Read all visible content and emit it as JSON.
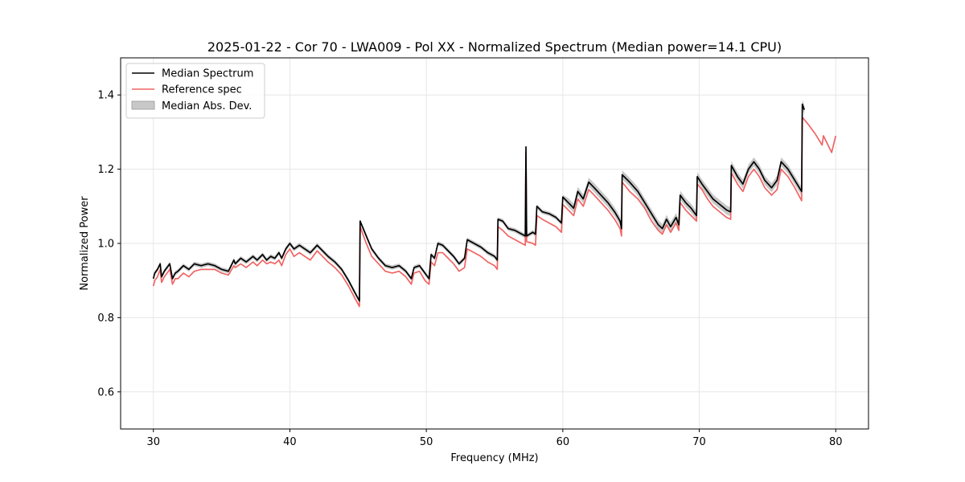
{
  "chart_data": {
    "type": "line",
    "title": "2025-01-22 - Cor 70 - LWA009 - Pol XX - Normalized Spectrum (Median power=14.1 CPU)",
    "xlabel": "Frequency (MHz)",
    "ylabel": "Normalized Power",
    "xlim": [
      27.6,
      82.4
    ],
    "ylim": [
      0.5,
      1.5
    ],
    "xticks": [
      30,
      40,
      50,
      60,
      70,
      80
    ],
    "yticks": [
      0.6,
      0.8,
      1.0,
      1.2,
      1.4
    ],
    "grid": true,
    "legend_position": "top-left",
    "colors": {
      "median": "#000000",
      "reference": "#f06464",
      "mad_fill": "#b4b4b4",
      "overlap": "#8b0000",
      "grid": "#e6e6e6"
    },
    "series": [
      {
        "name": "Median Spectrum",
        "x": [
          30.0,
          30.1,
          30.3,
          30.5,
          30.6,
          30.8,
          31.0,
          31.2,
          31.4,
          31.6,
          31.8,
          32.2,
          32.6,
          33.0,
          33.5,
          34.0,
          34.5,
          35.0,
          35.5,
          35.9,
          36.0,
          36.4,
          36.8,
          37.3,
          37.6,
          38.0,
          38.3,
          38.6,
          38.9,
          39.2,
          39.4,
          39.7,
          40.0,
          40.3,
          40.7,
          41.1,
          41.5,
          42.0,
          42.4,
          42.8,
          43.3,
          43.8,
          44.3,
          44.8,
          45.1,
          45.15,
          45.6,
          46.0,
          46.5,
          47.0,
          47.5,
          48.0,
          48.5,
          48.9,
          49.1,
          49.5,
          49.9,
          50.2,
          50.35,
          50.6,
          50.85,
          51.2,
          51.6,
          52.0,
          52.4,
          52.8,
          53.0,
          53.5,
          54.0,
          54.5,
          55.0,
          55.2,
          55.25,
          55.6,
          56.0,
          56.5,
          57.0,
          57.25,
          57.3,
          57.35,
          57.8,
          58.0,
          58.1,
          58.5,
          59.0,
          59.5,
          59.9,
          60.0,
          60.4,
          60.8,
          61.1,
          61.5,
          61.9,
          62.3,
          62.8,
          63.3,
          63.8,
          64.2,
          64.3,
          64.35,
          64.9,
          65.5,
          66.0,
          66.5,
          67.0,
          67.3,
          67.6,
          67.9,
          68.3,
          68.5,
          68.6,
          69.0,
          69.4,
          69.8,
          69.85,
          70.2,
          70.6,
          71.0,
          71.5,
          72.0,
          72.3,
          72.35,
          72.8,
          73.2,
          73.6,
          74.0,
          74.4,
          74.8,
          75.3,
          75.7,
          76.0,
          76.5,
          77.0,
          77.5,
          77.55,
          77.7
        ],
        "values": [
          0.905,
          0.92,
          0.93,
          0.945,
          0.91,
          0.925,
          0.935,
          0.945,
          0.905,
          0.92,
          0.925,
          0.94,
          0.93,
          0.945,
          0.94,
          0.945,
          0.94,
          0.93,
          0.925,
          0.955,
          0.945,
          0.96,
          0.95,
          0.965,
          0.955,
          0.97,
          0.955,
          0.965,
          0.96,
          0.975,
          0.96,
          0.985,
          1.0,
          0.985,
          0.995,
          0.985,
          0.975,
          0.995,
          0.98,
          0.965,
          0.95,
          0.93,
          0.9,
          0.865,
          0.845,
          1.06,
          1.02,
          0.985,
          0.96,
          0.94,
          0.935,
          0.94,
          0.925,
          0.905,
          0.935,
          0.94,
          0.92,
          0.905,
          0.97,
          0.96,
          1.0,
          0.995,
          0.98,
          0.965,
          0.945,
          0.96,
          1.01,
          1.0,
          0.99,
          0.975,
          0.965,
          0.955,
          1.065,
          1.06,
          1.04,
          1.035,
          1.025,
          1.02,
          1.26,
          1.02,
          1.03,
          1.025,
          1.1,
          1.085,
          1.08,
          1.07,
          1.055,
          1.125,
          1.11,
          1.095,
          1.14,
          1.12,
          1.165,
          1.15,
          1.13,
          1.11,
          1.085,
          1.06,
          1.04,
          1.185,
          1.165,
          1.14,
          1.11,
          1.08,
          1.05,
          1.04,
          1.065,
          1.045,
          1.07,
          1.05,
          1.13,
          1.11,
          1.095,
          1.075,
          1.18,
          1.16,
          1.14,
          1.12,
          1.105,
          1.09,
          1.085,
          1.21,
          1.18,
          1.16,
          1.2,
          1.22,
          1.2,
          1.17,
          1.15,
          1.17,
          1.22,
          1.2,
          1.17,
          1.14,
          1.375,
          1.36
        ]
      },
      {
        "name": "Reference spec",
        "x": [
          30.0,
          30.1,
          30.3,
          30.5,
          30.6,
          30.8,
          31.0,
          31.2,
          31.4,
          31.6,
          31.8,
          32.2,
          32.6,
          33.0,
          33.5,
          34.0,
          34.5,
          35.0,
          35.5,
          35.9,
          36.0,
          36.4,
          36.8,
          37.3,
          37.6,
          38.0,
          38.3,
          38.6,
          38.9,
          39.2,
          39.4,
          39.7,
          40.0,
          40.3,
          40.7,
          41.1,
          41.5,
          42.0,
          42.4,
          42.8,
          43.3,
          43.8,
          44.3,
          44.8,
          45.1,
          45.15,
          45.6,
          46.0,
          46.5,
          47.0,
          47.5,
          48.0,
          48.5,
          48.9,
          49.1,
          49.5,
          49.9,
          50.2,
          50.35,
          50.6,
          50.85,
          51.2,
          51.6,
          52.0,
          52.4,
          52.8,
          53.0,
          53.5,
          54.0,
          54.5,
          55.0,
          55.2,
          55.25,
          55.6,
          56.0,
          56.5,
          57.0,
          57.25,
          57.3,
          57.35,
          57.8,
          58.0,
          58.1,
          58.5,
          59.0,
          59.5,
          59.9,
          60.0,
          60.4,
          60.8,
          61.1,
          61.5,
          61.9,
          62.3,
          62.8,
          63.3,
          63.8,
          64.2,
          64.3,
          64.35,
          64.9,
          65.5,
          66.0,
          66.5,
          67.0,
          67.3,
          67.6,
          67.9,
          68.3,
          68.5,
          68.6,
          69.0,
          69.4,
          69.8,
          69.85,
          70.2,
          70.6,
          71.0,
          71.5,
          72.0,
          72.3,
          72.35,
          72.8,
          73.2,
          73.6,
          74.0,
          74.4,
          74.8,
          75.3,
          75.7,
          76.0,
          76.5,
          77.0,
          77.5,
          77.55,
          78.0,
          78.5,
          79.0,
          79.1,
          79.5,
          79.7,
          80.0
        ],
        "values": [
          0.885,
          0.9,
          0.91,
          0.93,
          0.895,
          0.91,
          0.92,
          0.93,
          0.89,
          0.905,
          0.905,
          0.92,
          0.91,
          0.925,
          0.93,
          0.93,
          0.93,
          0.92,
          0.915,
          0.94,
          0.935,
          0.945,
          0.935,
          0.95,
          0.94,
          0.955,
          0.945,
          0.95,
          0.945,
          0.955,
          0.94,
          0.97,
          0.985,
          0.965,
          0.975,
          0.965,
          0.955,
          0.98,
          0.965,
          0.95,
          0.935,
          0.915,
          0.885,
          0.85,
          0.83,
          1.045,
          1.0,
          0.965,
          0.945,
          0.925,
          0.92,
          0.925,
          0.91,
          0.89,
          0.92,
          0.925,
          0.9,
          0.89,
          0.95,
          0.94,
          0.975,
          0.975,
          0.96,
          0.945,
          0.925,
          0.935,
          0.985,
          0.975,
          0.965,
          0.95,
          0.94,
          0.93,
          1.045,
          1.035,
          1.02,
          1.01,
          1.0,
          0.995,
          1.245,
          1.005,
          1.0,
          0.995,
          1.075,
          1.065,
          1.055,
          1.045,
          1.03,
          1.105,
          1.09,
          1.075,
          1.12,
          1.1,
          1.145,
          1.13,
          1.11,
          1.09,
          1.065,
          1.04,
          1.02,
          1.165,
          1.14,
          1.12,
          1.095,
          1.06,
          1.035,
          1.025,
          1.05,
          1.03,
          1.055,
          1.035,
          1.11,
          1.09,
          1.075,
          1.06,
          1.16,
          1.145,
          1.12,
          1.1,
          1.085,
          1.07,
          1.065,
          1.19,
          1.16,
          1.14,
          1.18,
          1.2,
          1.18,
          1.15,
          1.13,
          1.145,
          1.2,
          1.18,
          1.15,
          1.115,
          1.34,
          1.32,
          1.295,
          1.265,
          1.29,
          1.26,
          1.245,
          1.29
        ]
      }
    ],
    "band": {
      "name": "Median Abs. Dev.",
      "half_width": 0.006
    }
  }
}
